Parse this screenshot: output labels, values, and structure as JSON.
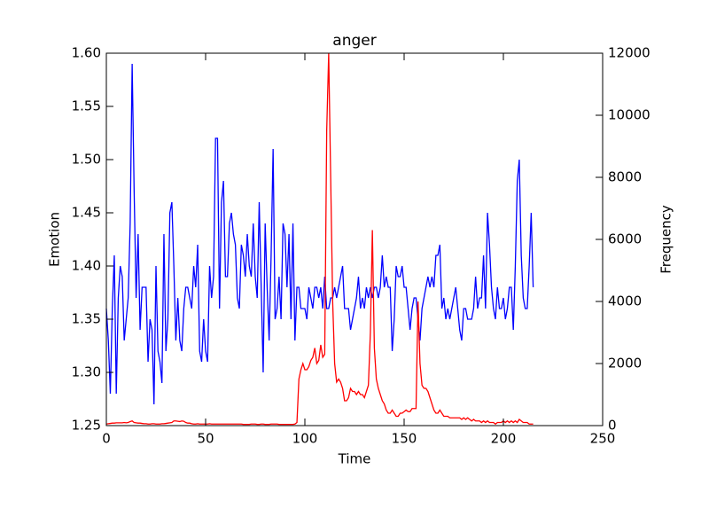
{
  "chart_data": {
    "type": "line",
    "title": "anger",
    "x_label": "Time",
    "y_label": "Emotion",
    "y2_label": "Frequency",
    "x": [
      0,
      1,
      2,
      3,
      4,
      5,
      6,
      7,
      8,
      9,
      10,
      11,
      12,
      13,
      14,
      15,
      16,
      17,
      18,
      19,
      20,
      21,
      22,
      23,
      24,
      25,
      26,
      27,
      28,
      29,
      30,
      31,
      32,
      33,
      34,
      35,
      36,
      37,
      38,
      39,
      40,
      41,
      42,
      43,
      44,
      45,
      46,
      47,
      48,
      49,
      50,
      51,
      52,
      53,
      54,
      55,
      56,
      57,
      58,
      59,
      60,
      61,
      62,
      63,
      64,
      65,
      66,
      67,
      68,
      69,
      70,
      71,
      72,
      73,
      74,
      75,
      76,
      77,
      78,
      79,
      80,
      81,
      82,
      83,
      84,
      85,
      86,
      87,
      88,
      89,
      90,
      91,
      92,
      93,
      94,
      95,
      96,
      97,
      98,
      99,
      100,
      101,
      102,
      103,
      104,
      105,
      106,
      107,
      108,
      109,
      110,
      111,
      112,
      113,
      114,
      115,
      116,
      117,
      118,
      119,
      120,
      121,
      122,
      123,
      124,
      125,
      126,
      127,
      128,
      129,
      130,
      131,
      132,
      133,
      134,
      135,
      136,
      137,
      138,
      139,
      140,
      141,
      142,
      143,
      144,
      145,
      146,
      147,
      148,
      149,
      150,
      151,
      152,
      153,
      154,
      155,
      156,
      157,
      158,
      159,
      160,
      161,
      162,
      163,
      164,
      165,
      166,
      167,
      168,
      169,
      170,
      171,
      172,
      173,
      174,
      175,
      176,
      177,
      178,
      179,
      180,
      181,
      182,
      183,
      184,
      185,
      186,
      187,
      188,
      189,
      190,
      191,
      192,
      193,
      194,
      195,
      196,
      197,
      198,
      199,
      200,
      201,
      202,
      203,
      204,
      205,
      206,
      207,
      208,
      209,
      210,
      211,
      212,
      213,
      214,
      215
    ],
    "series": [
      {
        "color": "#0000ff",
        "axis": "y",
        "values": [
          1.36,
          1.33,
          1.28,
          1.36,
          1.41,
          1.28,
          1.37,
          1.4,
          1.39,
          1.33,
          1.35,
          1.37,
          1.44,
          1.59,
          1.47,
          1.37,
          1.43,
          1.34,
          1.38,
          1.38,
          1.38,
          1.31,
          1.35,
          1.34,
          1.27,
          1.4,
          1.32,
          1.31,
          1.29,
          1.43,
          1.32,
          1.35,
          1.45,
          1.46,
          1.4,
          1.33,
          1.37,
          1.33,
          1.32,
          1.36,
          1.38,
          1.38,
          1.37,
          1.36,
          1.4,
          1.38,
          1.42,
          1.32,
          1.31,
          1.35,
          1.32,
          1.31,
          1.4,
          1.37,
          1.39,
          1.52,
          1.52,
          1.36,
          1.46,
          1.48,
          1.39,
          1.39,
          1.44,
          1.45,
          1.43,
          1.42,
          1.37,
          1.36,
          1.42,
          1.41,
          1.39,
          1.43,
          1.4,
          1.39,
          1.44,
          1.39,
          1.37,
          1.46,
          1.38,
          1.3,
          1.44,
          1.38,
          1.33,
          1.41,
          1.51,
          1.35,
          1.36,
          1.39,
          1.35,
          1.44,
          1.43,
          1.38,
          1.43,
          1.35,
          1.44,
          1.33,
          1.38,
          1.38,
          1.36,
          1.36,
          1.36,
          1.35,
          1.38,
          1.37,
          1.36,
          1.38,
          1.38,
          1.37,
          1.38,
          1.36,
          1.39,
          1.36,
          1.36,
          1.37,
          1.37,
          1.38,
          1.37,
          1.38,
          1.39,
          1.4,
          1.36,
          1.36,
          1.36,
          1.34,
          1.35,
          1.36,
          1.37,
          1.39,
          1.36,
          1.37,
          1.36,
          1.38,
          1.37,
          1.38,
          1.37,
          1.38,
          1.38,
          1.37,
          1.38,
          1.41,
          1.38,
          1.39,
          1.38,
          1.38,
          1.32,
          1.35,
          1.4,
          1.39,
          1.39,
          1.4,
          1.38,
          1.38,
          1.36,
          1.34,
          1.36,
          1.37,
          1.37,
          1.35,
          1.33,
          1.36,
          1.37,
          1.38,
          1.39,
          1.38,
          1.39,
          1.38,
          1.41,
          1.41,
          1.42,
          1.36,
          1.37,
          1.35,
          1.36,
          1.35,
          1.36,
          1.37,
          1.38,
          1.36,
          1.34,
          1.33,
          1.36,
          1.36,
          1.35,
          1.35,
          1.35,
          1.36,
          1.39,
          1.36,
          1.37,
          1.37,
          1.41,
          1.36,
          1.45,
          1.42,
          1.38,
          1.36,
          1.35,
          1.38,
          1.36,
          1.36,
          1.37,
          1.35,
          1.36,
          1.38,
          1.38,
          1.34,
          1.4,
          1.48,
          1.5,
          1.41,
          1.37,
          1.36,
          1.36,
          1.4,
          1.45,
          1.38
        ]
      },
      {
        "color": "#ff0000",
        "axis": "y2",
        "values": [
          50,
          60,
          70,
          80,
          80,
          90,
          90,
          90,
          90,
          100,
          90,
          100,
          130,
          150,
          100,
          90,
          80,
          80,
          70,
          60,
          60,
          50,
          50,
          60,
          60,
          50,
          50,
          50,
          60,
          60,
          70,
          80,
          90,
          100,
          150,
          150,
          140,
          130,
          150,
          140,
          100,
          80,
          80,
          60,
          50,
          50,
          60,
          50,
          50,
          50,
          50,
          50,
          60,
          50,
          50,
          50,
          50,
          50,
          50,
          50,
          50,
          50,
          50,
          50,
          50,
          50,
          50,
          50,
          50,
          40,
          40,
          40,
          40,
          50,
          50,
          50,
          40,
          40,
          50,
          50,
          40,
          40,
          40,
          50,
          50,
          50,
          50,
          40,
          40,
          40,
          40,
          40,
          40,
          40,
          40,
          50,
          100,
          1500,
          1800,
          2000,
          1800,
          1800,
          1900,
          2100,
          2200,
          2500,
          2000,
          2100,
          2600,
          2200,
          2300,
          9500,
          12000,
          8000,
          4000,
          2000,
          1400,
          1500,
          1400,
          1200,
          800,
          800,
          900,
          1200,
          1100,
          1100,
          1000,
          1100,
          1000,
          1000,
          900,
          1100,
          1300,
          3000,
          6300,
          2500,
          1500,
          1200,
          1000,
          800,
          700,
          500,
          400,
          400,
          500,
          400,
          300,
          300,
          400,
          400,
          450,
          500,
          450,
          450,
          550,
          550,
          550,
          4000,
          2000,
          1300,
          1200,
          1200,
          1100,
          900,
          700,
          500,
          400,
          400,
          500,
          400,
          300,
          300,
          300,
          250,
          250,
          250,
          250,
          250,
          250,
          200,
          250,
          200,
          250,
          200,
          150,
          200,
          150,
          150,
          150,
          100,
          150,
          100,
          150,
          100,
          100,
          100,
          50,
          100,
          100,
          100,
          150,
          100,
          150,
          100,
          150,
          100,
          150,
          100,
          200,
          150,
          100,
          100,
          100,
          50,
          50,
          50
        ]
      }
    ],
    "xlim": [
      0,
      250
    ],
    "xticks": [
      0,
      50,
      100,
      150,
      200,
      250
    ],
    "ylim": [
      1.25,
      1.6
    ],
    "yticks": [
      1.25,
      {
        "value": 1.3,
        "label": "1.30"
      },
      1.35,
      {
        "value": 1.4,
        "label": "1.40"
      },
      1.45,
      {
        "value": 1.5,
        "label": "1.50"
      },
      1.55,
      {
        "value": 1.6,
        "label": "1.60"
      }
    ],
    "y2lim": [
      0,
      12000
    ],
    "y2ticks": [
      0,
      2000,
      4000,
      6000,
      8000,
      10000,
      12000
    ],
    "grid": false
  }
}
